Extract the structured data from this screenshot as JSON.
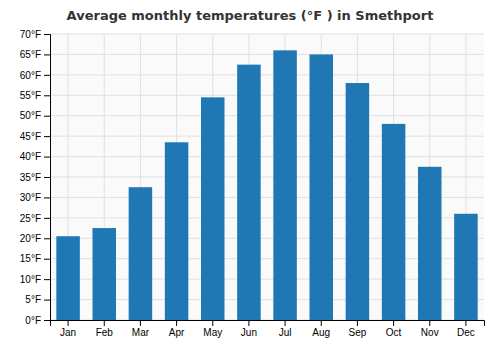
{
  "chart_data": {
    "type": "bar",
    "title": "Average monthly temperatures (°F ) in Smethport",
    "categories": [
      "Jan",
      "Feb",
      "Mar",
      "Apr",
      "May",
      "Jun",
      "Jul",
      "Aug",
      "Sep",
      "Oct",
      "Nov",
      "Dec"
    ],
    "values": [
      20.5,
      22.5,
      32.5,
      43.5,
      54.5,
      62.5,
      66.0,
      65.0,
      58.0,
      48.0,
      37.5,
      26.0
    ],
    "ylim": [
      0,
      70
    ],
    "yticks": [
      {
        "value": 0,
        "label": "0°F"
      },
      {
        "value": 5,
        "label": "5°F"
      },
      {
        "value": 10,
        "label": "10°F"
      },
      {
        "value": 15,
        "label": "15°F"
      },
      {
        "value": 20,
        "label": "20°F"
      },
      {
        "value": 25,
        "label": "25°F"
      },
      {
        "value": 30,
        "label": "30°F"
      },
      {
        "value": 35,
        "label": "35°F"
      },
      {
        "value": 40,
        "label": "40°F"
      },
      {
        "value": 45,
        "label": "45°F"
      },
      {
        "value": 50,
        "label": "50°F"
      },
      {
        "value": 55,
        "label": "55°F"
      },
      {
        "value": 60,
        "label": "60°F"
      },
      {
        "value": 65,
        "label": "65°F"
      },
      {
        "value": 70,
        "label": "70°F"
      }
    ],
    "grid": true
  }
}
